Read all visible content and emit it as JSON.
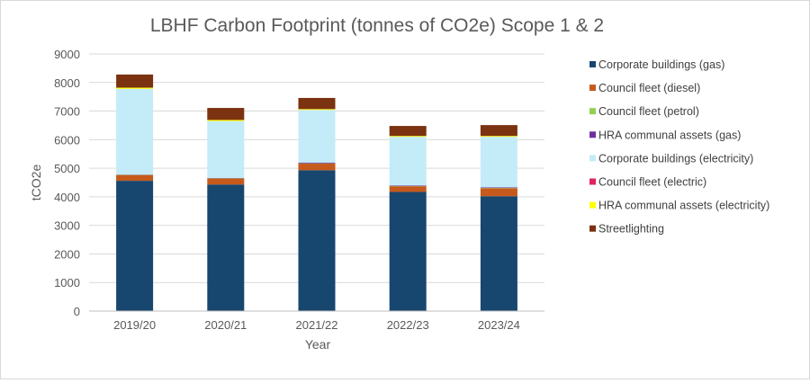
{
  "chart_data": {
    "type": "bar",
    "stacked": true,
    "title": "LBHF Carbon Footprint (tonnes of CO2e) Scope 1 & 2",
    "xlabel": "Year",
    "ylabel": "tCO2e",
    "ylim": [
      0,
      9000
    ],
    "yticks": [
      "0",
      "1000",
      "2000",
      "3000",
      "4000",
      "5000",
      "6000",
      "7000",
      "8000",
      "9000"
    ],
    "grid": true,
    "legend_position": "right",
    "categories": [
      "2019/20",
      "2020/21",
      "2021/22",
      "2022/23",
      "2023/24"
    ],
    "series": [
      {
        "name": "Corporate buildings (gas)",
        "color": "#17466f",
        "values": [
          4560,
          4430,
          4930,
          4170,
          4020
        ]
      },
      {
        "name": "Council fleet (diesel)",
        "color": "#c55a1c",
        "values": [
          200,
          210,
          230,
          200,
          280
        ]
      },
      {
        "name": "Council fleet (petrol)",
        "color": "#92d050",
        "values": [
          10,
          10,
          10,
          10,
          10
        ]
      },
      {
        "name": "HRA communal assets (gas)",
        "color": "#7030a0",
        "values": [
          10,
          10,
          30,
          20,
          20
        ]
      },
      {
        "name": "Corporate buildings (electricity)",
        "color": "#c4ebf8",
        "values": [
          3000,
          1990,
          1840,
          1700,
          1770
        ]
      },
      {
        "name": "Council fleet (electric)",
        "color": "#e0245e",
        "values": [
          0,
          0,
          0,
          0,
          0
        ]
      },
      {
        "name": "HRA communal assets (electricity)",
        "color": "#ffff00",
        "values": [
          40,
          40,
          30,
          30,
          30
        ]
      },
      {
        "name": "Streetlighting",
        "color": "#7b3210",
        "values": [
          460,
          420,
          390,
          350,
          380
        ]
      }
    ]
  }
}
